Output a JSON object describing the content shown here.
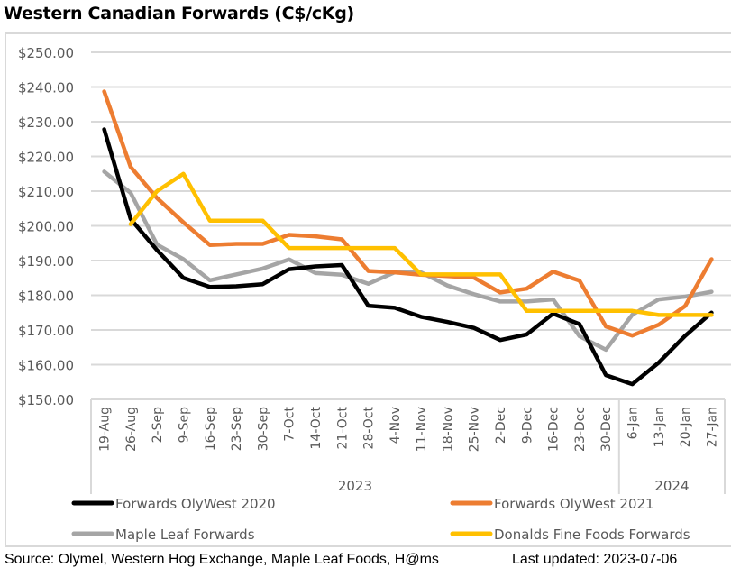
{
  "title": "Western Canadian Forwards (C$/cKg)",
  "footer": {
    "source": "Source: Olymel, Western Hog Exchange, Maple Leaf Foods, H@ms",
    "last_updated": "Last updated:  2023-07-06"
  },
  "chart_data": {
    "type": "line",
    "title": "Western Canadian Forwards (C$/cKg)",
    "xlabel": "",
    "ylabel": "",
    "ylim": [
      150,
      250
    ],
    "yticks": [
      150,
      160,
      170,
      180,
      190,
      200,
      210,
      220,
      230,
      240,
      250
    ],
    "ytick_labels": [
      "$150.00",
      "$160.00",
      "$170.00",
      "$180.00",
      "$190.00",
      "$200.00",
      "$210.00",
      "$220.00",
      "$230.00",
      "$240.00",
      "$250.00"
    ],
    "grid": true,
    "legend_position": "bottom",
    "categories": [
      "19-Aug",
      "26-Aug",
      "2-Sep",
      "9-Sep",
      "16-Sep",
      "23-Sep",
      "30-Sep",
      "7-Oct",
      "14-Oct",
      "21-Oct",
      "28-Oct",
      "4-Nov",
      "11-Nov",
      "18-Nov",
      "25-Nov",
      "2-Dec",
      "9-Dec",
      "16-Dec",
      "23-Dec",
      "30-Dec",
      "6-Jan",
      "13-Jan",
      "20-Jan",
      "27-Jan"
    ],
    "year_groups": [
      {
        "label": "2023",
        "start": 0,
        "end": 19
      },
      {
        "label": "2024",
        "start": 20,
        "end": 23
      }
    ],
    "series": [
      {
        "name": "Forwards OlyWest 2020",
        "color": "#000000",
        "values": [
          227.8,
          202.0,
          193.0,
          185.0,
          182.4,
          182.6,
          183.2,
          187.5,
          188.3,
          188.7,
          177.0,
          176.4,
          173.8,
          172.3,
          170.6,
          167.1,
          168.7,
          174.7,
          171.7,
          157.0,
          154.4,
          160.6,
          168.3,
          175.0
        ]
      },
      {
        "name": "Forwards OlyWest 2021",
        "color": "#ED7D31",
        "values": [
          238.7,
          217.0,
          208.0,
          201.0,
          194.5,
          194.8,
          194.8,
          197.4,
          197.0,
          196.1,
          187.0,
          186.6,
          185.9,
          185.5,
          185.1,
          180.8,
          181.9,
          186.8,
          184.2,
          171.0,
          168.4,
          171.5,
          176.9,
          190.4
        ]
      },
      {
        "name": "Maple Leaf Forwards",
        "color": "#A5A5A5",
        "values": [
          215.6,
          209.5,
          194.6,
          190.4,
          184.3,
          186.0,
          187.7,
          190.3,
          186.4,
          185.9,
          183.3,
          186.6,
          186.6,
          182.8,
          180.3,
          178.2,
          178.2,
          178.8,
          168.2,
          164.3,
          174.4,
          178.8,
          179.6,
          181.0
        ]
      },
      {
        "name": "Donalds Fine Foods Forwards",
        "color": "#FFC000",
        "values": [
          null,
          200.5,
          210.0,
          215.0,
          201.5,
          201.5,
          201.5,
          193.6,
          193.6,
          193.6,
          193.6,
          193.6,
          186.0,
          186.0,
          186.0,
          186.0,
          175.5,
          175.5,
          175.5,
          175.5,
          175.5,
          174.3,
          174.3,
          174.3
        ]
      }
    ]
  }
}
